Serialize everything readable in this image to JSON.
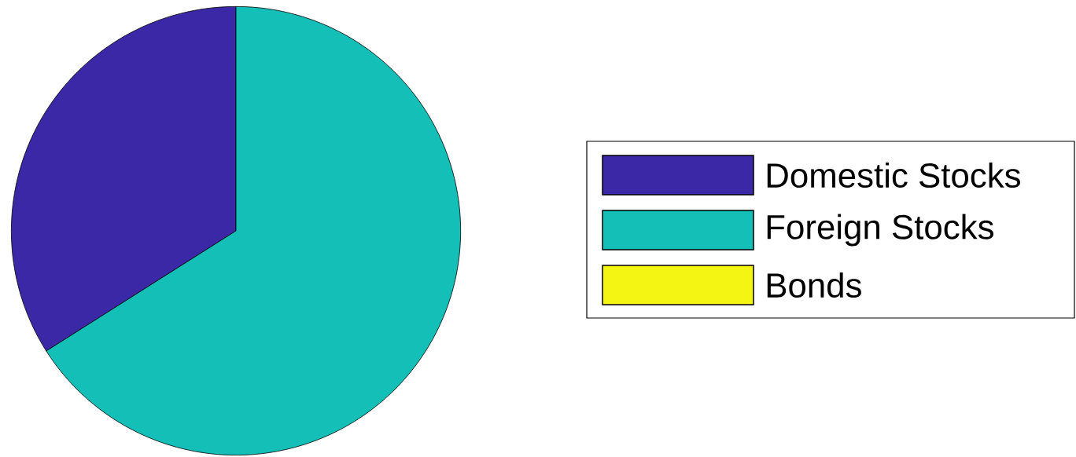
{
  "chart_data": {
    "type": "pie",
    "categories": [
      "Domestic Stocks",
      "Foreign Stocks",
      "Bonds"
    ],
    "values": [
      34,
      66,
      0
    ],
    "colors": [
      "#3b28a6",
      "#14bfb8",
      "#f5f514"
    ],
    "legend": "right"
  }
}
